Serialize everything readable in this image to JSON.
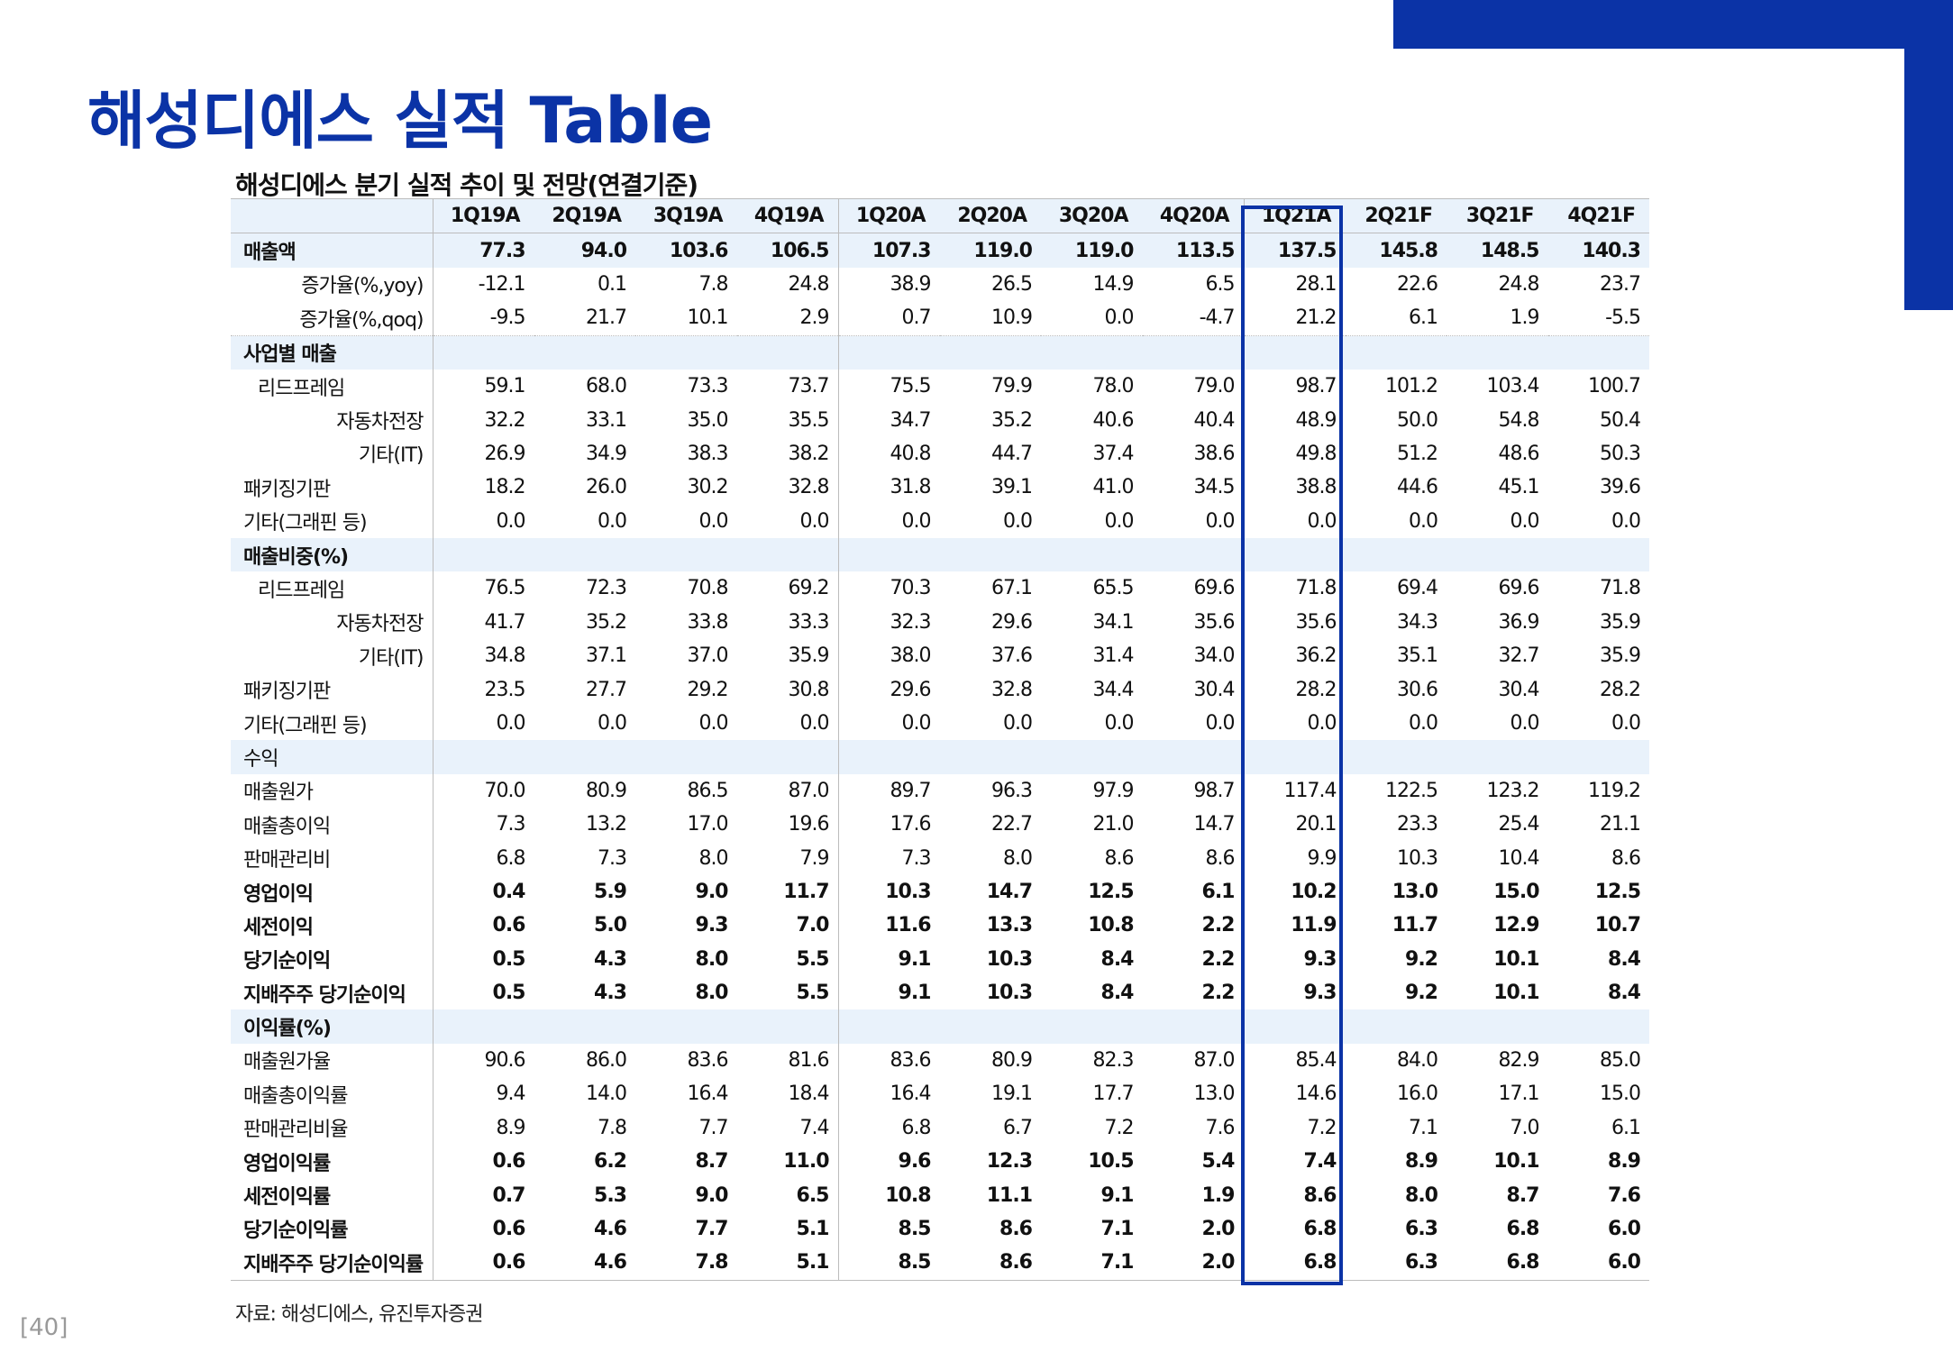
{
  "page": {
    "title": "해성디에스 실적 Table",
    "table_title": "해성디에스 분기 실적 추이 및 전망(연결기준)",
    "source": "자료: 해성디에스, 유진투자증권",
    "page_number": "[40]",
    "accent_color": "#0b33a6",
    "band_color": "#e9f2fb"
  },
  "table": {
    "columns": [
      "1Q19A",
      "2Q19A",
      "3Q19A",
      "4Q19A",
      "1Q20A",
      "2Q20A",
      "3Q20A",
      "4Q20A",
      "1Q21A",
      "2Q21F",
      "3Q21F",
      "4Q21F"
    ],
    "highlighted_column": "1Q21A",
    "rows": [
      {
        "label": "매출액",
        "values": [
          "77.3",
          "94.0",
          "103.6",
          "106.5",
          "107.3",
          "119.0",
          "119.0",
          "113.5",
          "137.5",
          "145.8",
          "148.5",
          "140.3"
        ]
      },
      {
        "label": "증가율(%,yoy)",
        "values": [
          "-12.1",
          "0.1",
          "7.8",
          "24.8",
          "38.9",
          "26.5",
          "14.9",
          "6.5",
          "28.1",
          "22.6",
          "24.8",
          "23.7"
        ]
      },
      {
        "label": "증가율(%,qoq)",
        "values": [
          "-9.5",
          "21.7",
          "10.1",
          "2.9",
          "0.7",
          "10.9",
          "0.0",
          "-4.7",
          "21.2",
          "6.1",
          "1.9",
          "-5.5"
        ]
      },
      {
        "label": "사업별 매출",
        "values": [
          "",
          "",
          "",
          "",
          "",
          "",
          "",
          "",
          "",
          "",
          "",
          ""
        ]
      },
      {
        "label": "리드프레임",
        "values": [
          "59.1",
          "68.0",
          "73.3",
          "73.7",
          "75.5",
          "79.9",
          "78.0",
          "79.0",
          "98.7",
          "101.2",
          "103.4",
          "100.7"
        ]
      },
      {
        "label": "자동차전장",
        "values": [
          "32.2",
          "33.1",
          "35.0",
          "35.5",
          "34.7",
          "35.2",
          "40.6",
          "40.4",
          "48.9",
          "50.0",
          "54.8",
          "50.4"
        ]
      },
      {
        "label": "기타(IT)",
        "values": [
          "26.9",
          "34.9",
          "38.3",
          "38.2",
          "40.8",
          "44.7",
          "37.4",
          "38.6",
          "49.8",
          "51.2",
          "48.6",
          "50.3"
        ]
      },
      {
        "label": "패키징기판",
        "values": [
          "18.2",
          "26.0",
          "30.2",
          "32.8",
          "31.8",
          "39.1",
          "41.0",
          "34.5",
          "38.8",
          "44.6",
          "45.1",
          "39.6"
        ]
      },
      {
        "label": "기타(그래핀 등)",
        "values": [
          "0.0",
          "0.0",
          "0.0",
          "0.0",
          "0.0",
          "0.0",
          "0.0",
          "0.0",
          "0.0",
          "0.0",
          "0.0",
          "0.0"
        ]
      },
      {
        "label": "매출비중(%)",
        "values": [
          "",
          "",
          "",
          "",
          "",
          "",
          "",
          "",
          "",
          "",
          "",
          ""
        ]
      },
      {
        "label": "리드프레임",
        "values": [
          "76.5",
          "72.3",
          "70.8",
          "69.2",
          "70.3",
          "67.1",
          "65.5",
          "69.6",
          "71.8",
          "69.4",
          "69.6",
          "71.8"
        ]
      },
      {
        "label": "자동차전장",
        "values": [
          "41.7",
          "35.2",
          "33.8",
          "33.3",
          "32.3",
          "29.6",
          "34.1",
          "35.6",
          "35.6",
          "34.3",
          "36.9",
          "35.9"
        ]
      },
      {
        "label": "기타(IT)",
        "values": [
          "34.8",
          "37.1",
          "37.0",
          "35.9",
          "38.0",
          "37.6",
          "31.4",
          "34.0",
          "36.2",
          "35.1",
          "32.7",
          "35.9"
        ]
      },
      {
        "label": "패키징기판",
        "values": [
          "23.5",
          "27.7",
          "29.2",
          "30.8",
          "29.6",
          "32.8",
          "34.4",
          "30.4",
          "28.2",
          "30.6",
          "30.4",
          "28.2"
        ]
      },
      {
        "label": "기타(그래핀 등)",
        "values": [
          "0.0",
          "0.0",
          "0.0",
          "0.0",
          "0.0",
          "0.0",
          "0.0",
          "0.0",
          "0.0",
          "0.0",
          "0.0",
          "0.0"
        ]
      },
      {
        "label": "수익",
        "values": [
          "",
          "",
          "",
          "",
          "",
          "",
          "",
          "",
          "",
          "",
          "",
          ""
        ]
      },
      {
        "label": "매출원가",
        "values": [
          "70.0",
          "80.9",
          "86.5",
          "87.0",
          "89.7",
          "96.3",
          "97.9",
          "98.7",
          "117.4",
          "122.5",
          "123.2",
          "119.2"
        ]
      },
      {
        "label": "매출총이익",
        "values": [
          "7.3",
          "13.2",
          "17.0",
          "19.6",
          "17.6",
          "22.7",
          "21.0",
          "14.7",
          "20.1",
          "23.3",
          "25.4",
          "21.1"
        ]
      },
      {
        "label": "판매관리비",
        "values": [
          "6.8",
          "7.3",
          "8.0",
          "7.9",
          "7.3",
          "8.0",
          "8.6",
          "8.6",
          "9.9",
          "10.3",
          "10.4",
          "8.6"
        ]
      },
      {
        "label": "영업이익",
        "values": [
          "0.4",
          "5.9",
          "9.0",
          "11.7",
          "10.3",
          "14.7",
          "12.5",
          "6.1",
          "10.2",
          "13.0",
          "15.0",
          "12.5"
        ]
      },
      {
        "label": "세전이익",
        "values": [
          "0.6",
          "5.0",
          "9.3",
          "7.0",
          "11.6",
          "13.3",
          "10.8",
          "2.2",
          "11.9",
          "11.7",
          "12.9",
          "10.7"
        ]
      },
      {
        "label": "당기순이익",
        "values": [
          "0.5",
          "4.3",
          "8.0",
          "5.5",
          "9.1",
          "10.3",
          "8.4",
          "2.2",
          "9.3",
          "9.2",
          "10.1",
          "8.4"
        ]
      },
      {
        "label": "지배주주 당기순이익",
        "values": [
          "0.5",
          "4.3",
          "8.0",
          "5.5",
          "9.1",
          "10.3",
          "8.4",
          "2.2",
          "9.3",
          "9.2",
          "10.1",
          "8.4"
        ]
      },
      {
        "label": "이익률(%)",
        "values": [
          "",
          "",
          "",
          "",
          "",
          "",
          "",
          "",
          "",
          "",
          "",
          ""
        ]
      },
      {
        "label": "매출원가율",
        "values": [
          "90.6",
          "86.0",
          "83.6",
          "81.6",
          "83.6",
          "80.9",
          "82.3",
          "87.0",
          "85.4",
          "84.0",
          "82.9",
          "85.0"
        ]
      },
      {
        "label": "매출총이익률",
        "values": [
          "9.4",
          "14.0",
          "16.4",
          "18.4",
          "16.4",
          "19.1",
          "17.7",
          "13.0",
          "14.6",
          "16.0",
          "17.1",
          "15.0"
        ]
      },
      {
        "label": "판매관리비율",
        "values": [
          "8.9",
          "7.8",
          "7.7",
          "7.4",
          "6.8",
          "6.7",
          "7.2",
          "7.6",
          "7.2",
          "7.1",
          "7.0",
          "6.1"
        ]
      },
      {
        "label": "영업이익률",
        "values": [
          "0.6",
          "6.2",
          "8.7",
          "11.0",
          "9.6",
          "12.3",
          "10.5",
          "5.4",
          "7.4",
          "8.9",
          "10.1",
          "8.9"
        ]
      },
      {
        "label": "세전이익률",
        "values": [
          "0.7",
          "5.3",
          "9.0",
          "6.5",
          "10.8",
          "11.1",
          "9.1",
          "1.9",
          "8.6",
          "8.0",
          "8.7",
          "7.6"
        ]
      },
      {
        "label": "당기순이익률",
        "values": [
          "0.6",
          "4.6",
          "7.7",
          "5.1",
          "8.5",
          "8.6",
          "7.1",
          "2.0",
          "6.8",
          "6.3",
          "6.8",
          "6.0"
        ]
      },
      {
        "label": "지배주주 당기순이익률",
        "values": [
          "0.6",
          "4.6",
          "7.8",
          "5.1",
          "8.5",
          "8.6",
          "7.1",
          "2.0",
          "6.8",
          "6.3",
          "6.8",
          "6.0"
        ]
      }
    ]
  }
}
